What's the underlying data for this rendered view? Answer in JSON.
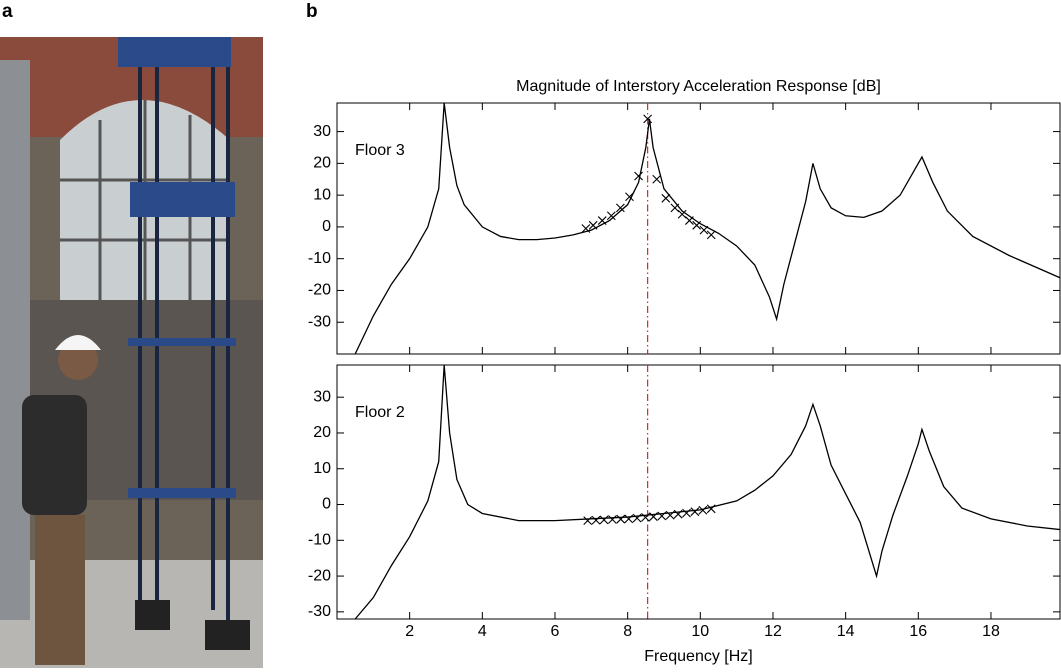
{
  "panel_labels": [
    "a",
    "b"
  ],
  "chart_data": [
    {
      "type": "line",
      "title": "Magnitude of Interstory Acceleration Response [dB]",
      "annotation": "Floor 3",
      "xlim": [
        0,
        19.9
      ],
      "ylim": [
        -40,
        39
      ],
      "xticks": [
        2,
        4,
        6,
        8,
        10,
        12,
        14,
        16,
        18
      ],
      "xtick_labels": false,
      "yticks": [
        -30,
        -20,
        -10,
        0,
        10,
        20,
        30
      ],
      "vline": 8.55,
      "vline_color": "#d62728",
      "series": [
        {
          "color": "#000000",
          "marker": "none",
          "x": [
            0.5,
            1,
            1.5,
            2,
            2.5,
            2.8,
            2.95,
            3.1,
            3.3,
            3.5,
            4,
            4.5,
            5,
            5.5,
            6,
            6.5,
            7,
            7.5,
            8,
            8.3,
            8.5,
            8.6,
            8.7,
            9,
            9.5,
            10,
            10.5,
            11,
            11.5,
            11.9,
            12.1,
            12.3,
            12.6,
            12.9,
            13.1,
            13.3,
            13.6,
            14,
            14.5,
            15,
            15.5,
            15.9,
            16.1,
            16.4,
            16.8,
            17.5,
            18.5,
            19.9
          ],
          "values": [
            -40,
            -28,
            -18,
            -10,
            0,
            12,
            39,
            25,
            13,
            7,
            0,
            -3,
            -4,
            -4,
            -3.5,
            -2.5,
            -1,
            2,
            7,
            14,
            25,
            34,
            25,
            12,
            5,
            1,
            -2,
            -6,
            -12,
            -22,
            -29,
            -18,
            -5,
            8,
            20,
            12,
            6,
            3.5,
            3,
            5,
            10,
            18,
            22,
            14,
            5,
            -3,
            -9,
            -16
          ]
        },
        {
          "color": "#000000",
          "marker": "x",
          "x": [
            6.85,
            7.05,
            7.3,
            7.55,
            7.8,
            8.05,
            8.3,
            8.55,
            8.8,
            9.05,
            9.3,
            9.5,
            9.7,
            9.9,
            10.1,
            10.3
          ],
          "values": [
            -0.5,
            0.5,
            2,
            3.5,
            6,
            9.5,
            16,
            34,
            15,
            9,
            6,
            4,
            2,
            0.5,
            -1,
            -2.5
          ]
        }
      ]
    },
    {
      "type": "line",
      "annotation": "Floor 2",
      "xlabel": "Frequency [Hz]",
      "xlim": [
        0,
        19.9
      ],
      "ylim": [
        -32,
        39
      ],
      "xticks": [
        2,
        4,
        6,
        8,
        10,
        12,
        14,
        16,
        18
      ],
      "xtick_labels": true,
      "yticks": [
        -30,
        -20,
        -10,
        0,
        10,
        20,
        30
      ],
      "vline": 8.55,
      "vline_color": "#d62728",
      "series": [
        {
          "color": "#000000",
          "marker": "none",
          "x": [
            0.5,
            1,
            1.5,
            2,
            2.5,
            2.8,
            2.95,
            3.1,
            3.3,
            3.6,
            4,
            5,
            6,
            7,
            8,
            9,
            10,
            11,
            11.5,
            12,
            12.5,
            12.9,
            13.1,
            13.3,
            13.6,
            14,
            14.4,
            14.7,
            14.85,
            15,
            15.3,
            15.7,
            16,
            16.1,
            16.3,
            16.7,
            17.2,
            18,
            19,
            19.9
          ],
          "values": [
            -32,
            -26,
            -17,
            -9,
            1,
            12,
            39,
            20,
            7,
            0,
            -2.5,
            -4.5,
            -4.5,
            -4,
            -3.5,
            -2.5,
            -1.5,
            1,
            4,
            8,
            14,
            22,
            28,
            22,
            11,
            3,
            -5,
            -15,
            -20,
            -13,
            -3,
            8,
            17,
            21,
            15,
            5,
            -1,
            -4,
            -6,
            -7
          ]
        },
        {
          "color": "#000000",
          "marker": "x",
          "x": [
            6.9,
            7.13,
            7.35,
            7.58,
            7.81,
            8.03,
            8.26,
            8.49,
            8.71,
            8.94,
            9.17,
            9.39,
            9.62,
            9.85,
            10.07,
            10.3
          ],
          "values": [
            -4.5,
            -4.4,
            -4.3,
            -4.2,
            -4.1,
            -4,
            -3.8,
            -3.6,
            -3.4,
            -3.2,
            -3,
            -2.7,
            -2.4,
            -2,
            -1.6,
            -1.2
          ]
        }
      ]
    }
  ]
}
